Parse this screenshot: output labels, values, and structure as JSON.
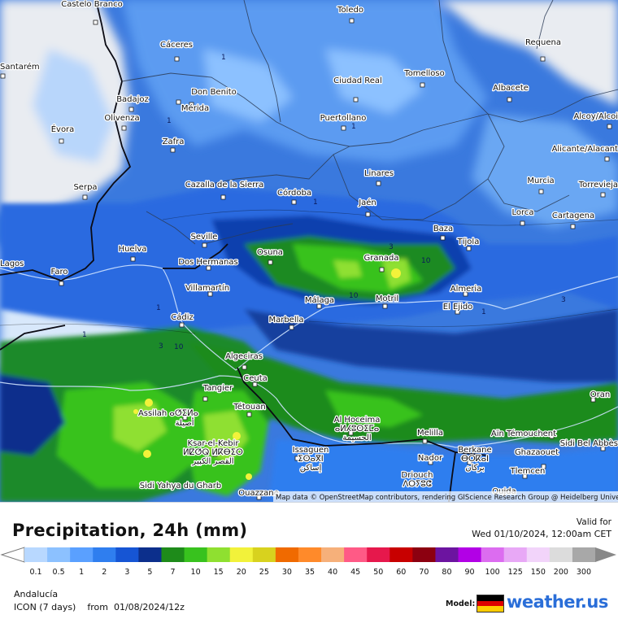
{
  "map": {
    "cities": [
      {
        "name": "Castelo Branco"
      },
      {
        "name": "Toledo"
      },
      {
        "name": "Cáceres"
      },
      {
        "name": "Requena"
      },
      {
        "name": "Santarém"
      },
      {
        "name": "Tomelloso"
      },
      {
        "name": "Ciudad Real"
      },
      {
        "name": "Albacete"
      },
      {
        "name": "Don Benito"
      },
      {
        "name": "Badajoz"
      },
      {
        "name": "Mérida"
      },
      {
        "name": "Alcoy/Alcoi"
      },
      {
        "name": "Olivenza"
      },
      {
        "name": "Puertollano"
      },
      {
        "name": "Évora"
      },
      {
        "name": "Zafra"
      },
      {
        "name": "Alicante/Alacant"
      },
      {
        "name": "Linares"
      },
      {
        "name": "Murcia"
      },
      {
        "name": "Torrevieja"
      },
      {
        "name": "Serpa"
      },
      {
        "name": "Cazalla de la Sierra"
      },
      {
        "name": "Córdoba"
      },
      {
        "name": "Jaén"
      },
      {
        "name": "Lorca"
      },
      {
        "name": "Cartagena"
      },
      {
        "name": "Baza"
      },
      {
        "name": "Seville"
      },
      {
        "name": "Tíjola"
      },
      {
        "name": "Huelva"
      },
      {
        "name": "Osuna"
      },
      {
        "name": "Lagos"
      },
      {
        "name": "Faro"
      },
      {
        "name": "Dos Hermanas"
      },
      {
        "name": "Granada"
      },
      {
        "name": "Almeria"
      },
      {
        "name": "Villamartín"
      },
      {
        "name": "Málaga"
      },
      {
        "name": "Motril"
      },
      {
        "name": "El Ejido"
      },
      {
        "name": "Cádiz"
      },
      {
        "name": "Marbella"
      },
      {
        "name": "Algeciras"
      },
      {
        "name": "Ceuta"
      },
      {
        "name": "Tangier"
      },
      {
        "name": "Oran"
      },
      {
        "name": "Tétouan"
      },
      {
        "name": "Assilah ⴰⵚⵉⵍⴰ"
      },
      {
        "name": "أصيلة"
      },
      {
        "name": "Al Hoceima"
      },
      {
        "name": "ⴰⵍⵃⵓⵙⵉⵎⴰ"
      },
      {
        "name": "الحسيمة"
      },
      {
        "name": "Aïn Témouchent"
      },
      {
        "name": "Ksar-el-Kebir"
      },
      {
        "name": "ⵍⵇⵚⵕ ⵍⴽⴱⵉⵔ"
      },
      {
        "name": "القصر الكبير"
      },
      {
        "name": "Melilla"
      },
      {
        "name": "Sidi Bel Abbès"
      },
      {
        "name": "Issaguen"
      },
      {
        "name": "ⵉⵙⴰⴳⵏ"
      },
      {
        "name": "إساكن"
      },
      {
        "name": "Nador"
      },
      {
        "name": "Berkane"
      },
      {
        "name": "ⴱⵔⴽⴰⵏ"
      },
      {
        "name": "بركان"
      },
      {
        "name": "Ghazaouet"
      },
      {
        "name": "Sidi Yahya du Gharb"
      },
      {
        "name": "Driouch"
      },
      {
        "name": "ⴷⵔⵢⵓⵛ"
      },
      {
        "name": "Tlemcen"
      },
      {
        "name": "Ouazzane"
      },
      {
        "name": "Oujda"
      }
    ],
    "attribution": "Map data © OpenStreetMap contributors, rendering GIScience Research Group @ Heidelberg University"
  },
  "legend": {
    "title": "Precipitation, 24h (mm)",
    "valid_label": "Valid for",
    "valid_time": "Wed 01/10/2024, 12:00am CET",
    "ticks": [
      "0.1",
      "0.5",
      "1",
      "2",
      "3",
      "5",
      "7",
      "10",
      "15",
      "20",
      "25",
      "30",
      "35",
      "40",
      "45",
      "50",
      "60",
      "70",
      "80",
      "90",
      "100",
      "125",
      "150",
      "200",
      "300"
    ],
    "colors": [
      "#b8d8ff",
      "#8cc1ff",
      "#5aa0ff",
      "#2f7eef",
      "#1655d4",
      "#0c2f8c",
      "#1e8b1a",
      "#38c21e",
      "#8fe030",
      "#f2f23a",
      "#d8d21e",
      "#f06a00",
      "#ff8a2a",
      "#f6b07a",
      "#ff5a86",
      "#e6184c",
      "#c80000",
      "#8c0010",
      "#6c14a0",
      "#b200e6",
      "#dc6cf0",
      "#e8a8f6",
      "#f2d4fa",
      "#dcdcdc",
      "#a8a8a8"
    ],
    "region": "Andalucía",
    "model": "ICON (7 days)",
    "from_label": "from",
    "run": "01/08/2024/12z",
    "brand_model_label": "Model:",
    "brand": "weather.us"
  }
}
